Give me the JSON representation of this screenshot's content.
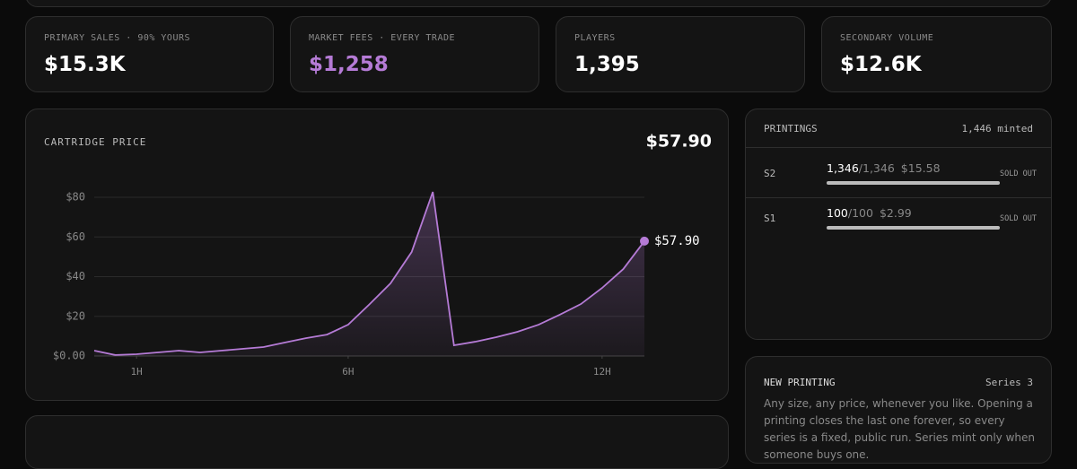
{
  "stats": [
    {
      "label": "PRIMARY SALES · 90% YOURS",
      "value": "$15.3K"
    },
    {
      "label": "MARKET FEES · EVERY TRADE",
      "value": "$1,258"
    },
    {
      "label": "PLAYERS",
      "value": "1,395"
    },
    {
      "label": "SECONDARY VOLUME",
      "value": "$12.6K"
    }
  ],
  "chart_data": {
    "type": "line",
    "title": "CARTRIDGE PRICE",
    "current": "$57.90",
    "x": [
      0,
      0.5,
      1,
      1.5,
      2,
      2.5,
      3,
      3.5,
      4,
      4.5,
      5,
      5.5,
      6,
      6.5,
      7,
      7.5,
      8,
      8.5,
      9,
      9.5,
      10,
      10.5,
      11,
      11.5,
      12,
      12.5,
      13
    ],
    "series": [
      {
        "color": "#b57bd6",
        "values": [
          2.7,
          0.5,
          0.9,
          1.8,
          2.7,
          1.8,
          2.7,
          3.6,
          4.5,
          6.8,
          9,
          10.8,
          15.8,
          26,
          36.6,
          52.4,
          82.7,
          5.4,
          7.2,
          9.5,
          12.2,
          15.8,
          20.8,
          26.2,
          34.3,
          43.8,
          57.9
        ]
      }
    ],
    "xlim": [
      0,
      13
    ],
    "xticks": [
      {
        "value": 1,
        "label": "1H"
      },
      {
        "value": 6,
        "label": "6H"
      },
      {
        "value": 12,
        "label": "12H"
      }
    ],
    "ylim": [
      0,
      85
    ],
    "yticks": [
      {
        "value": 0,
        "label": "$0.00"
      },
      {
        "value": 20,
        "label": "$20"
      },
      {
        "value": 40,
        "label": "$40"
      },
      {
        "value": 60,
        "label": "$60"
      },
      {
        "value": 80,
        "label": "$80"
      }
    ],
    "grid": true
  },
  "printings": {
    "title": "PRINTINGS",
    "minted": "1,446 minted",
    "rows": [
      {
        "series": "S2",
        "sold": "1,346",
        "supply": "/1,346",
        "price": "$15.58",
        "status": "SOLD OUT"
      },
      {
        "series": "S1",
        "sold": "100",
        "supply": "/100",
        "price": "$2.99",
        "status": "SOLD OUT"
      }
    ]
  },
  "new_printing": {
    "title": "NEW PRINTING",
    "series": "Series 3",
    "text": "Any size, any price, whenever you like. Opening a printing closes the last one forever, so every series is a fixed, public run. Series mint only when someone buys one."
  }
}
